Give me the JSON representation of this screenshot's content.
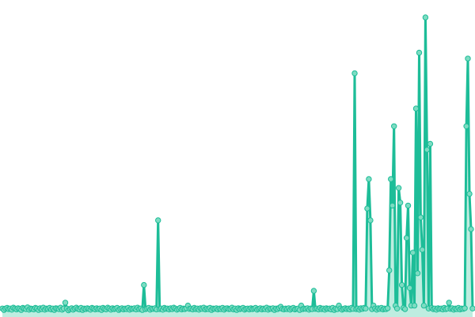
{
  "chart_data": {
    "type": "line",
    "title": "",
    "xlabel": "",
    "ylabel": "",
    "grid": false,
    "legend": "none",
    "ylim": [
      0,
      100
    ],
    "line_color": "#1dbd98",
    "marker_fill": "#7ddcc2",
    "values": [
      1,
      0.5,
      1,
      1.2,
      0.8,
      1,
      0.6,
      1.3,
      1,
      0.7,
      1.1,
      0.9,
      0.5,
      1.2,
      1,
      0.8,
      1.4,
      0.6,
      1,
      0.9,
      0.7,
      1.2,
      1,
      0.5,
      1.1,
      0.8,
      1.3,
      0.6,
      1,
      0.9,
      1.2,
      0.7,
      1,
      0.5,
      1.1,
      1,
      0.8,
      1.3,
      0.6,
      1,
      3,
      1,
      0.4,
      0.8,
      1.1,
      0.6,
      1,
      1.3,
      0.9,
      0.7,
      1.2,
      0.5,
      1,
      0.8,
      1.1,
      0.9,
      0.6,
      1.2,
      1,
      0.7,
      1.1,
      0.8,
      1,
      0.5,
      1.2,
      0.9,
      0.7,
      1.3,
      1,
      0.6,
      1.1,
      0.8,
      1,
      1.2,
      0.5,
      0.9,
      1.1,
      0.7,
      1,
      0.8,
      1.2,
      0.6,
      1,
      0.9,
      1.1,
      0.7,
      1.3,
      0.8,
      1,
      0.5,
      9,
      0.8,
      1,
      1.2,
      0.6,
      1,
      0.9,
      1.1,
      0.7,
      31,
      0.8,
      1,
      0.6,
      1.2,
      0.9,
      1,
      0.7,
      1.1,
      0.8,
      1.3,
      1,
      0.6,
      0.9,
      1.2,
      0.7,
      1,
      0.8,
      1.1,
      2,
      0.9,
      1,
      0.7,
      1.2,
      0.8,
      1,
      0.6,
      1.1,
      0.9,
      1.3,
      0.7,
      1,
      0.8,
      1.2,
      0.5,
      1,
      0.9,
      1.1,
      0.7,
      1,
      0.8,
      1.2,
      0.6,
      1,
      1.1,
      0.8,
      0.9,
      1.3,
      0.7,
      1,
      0.5,
      1.1,
      0.8,
      1,
      1.2,
      0.6,
      0.9,
      1,
      0.7,
      1.1,
      0.8,
      1,
      1.2,
      0.6,
      0.9,
      1.1,
      0.7,
      1,
      0.8,
      1.3,
      0.6,
      1,
      0.9,
      1.1,
      0.5,
      1,
      0.8,
      1.2,
      1.6,
      0.9,
      0.7,
      1,
      0.8,
      1.1,
      0.6,
      1,
      1.2,
      0.7,
      0.9,
      1,
      0.5,
      2,
      0.8,
      1,
      0.9,
      1.1,
      0.6,
      1,
      0.8,
      7,
      0.9,
      1,
      0.7,
      1.2,
      0.8,
      1,
      0.6,
      1.1,
      0.9,
      1,
      0.7,
      1.2,
      0.5,
      1,
      0.8,
      2,
      1,
      0.6,
      0.9,
      1.1,
      0.8,
      1,
      0.7,
      1.2,
      0.9,
      81,
      0.8,
      1,
      0.6,
      1.1,
      0.9,
      1.2,
      1,
      35,
      45,
      31,
      0.8,
      2,
      1,
      0.6,
      1.1,
      0.9,
      1.2,
      0.7,
      1,
      0.8,
      1.1,
      14,
      45,
      36,
      63,
      2,
      1,
      42,
      37,
      9,
      1.2,
      0.8,
      25,
      36,
      8,
      2,
      20,
      2,
      69,
      13,
      88,
      32,
      21,
      2,
      100,
      55,
      1,
      57,
      1.2,
      0.8,
      1,
      0.6,
      1.1,
      0.9,
      1,
      0.7,
      1.2,
      0.8,
      1,
      3,
      0.9,
      1.1,
      0.6,
      1,
      0.8,
      1.2,
      0.7,
      1,
      0.9,
      1.1,
      63,
      86,
      40,
      28,
      1
    ]
  }
}
